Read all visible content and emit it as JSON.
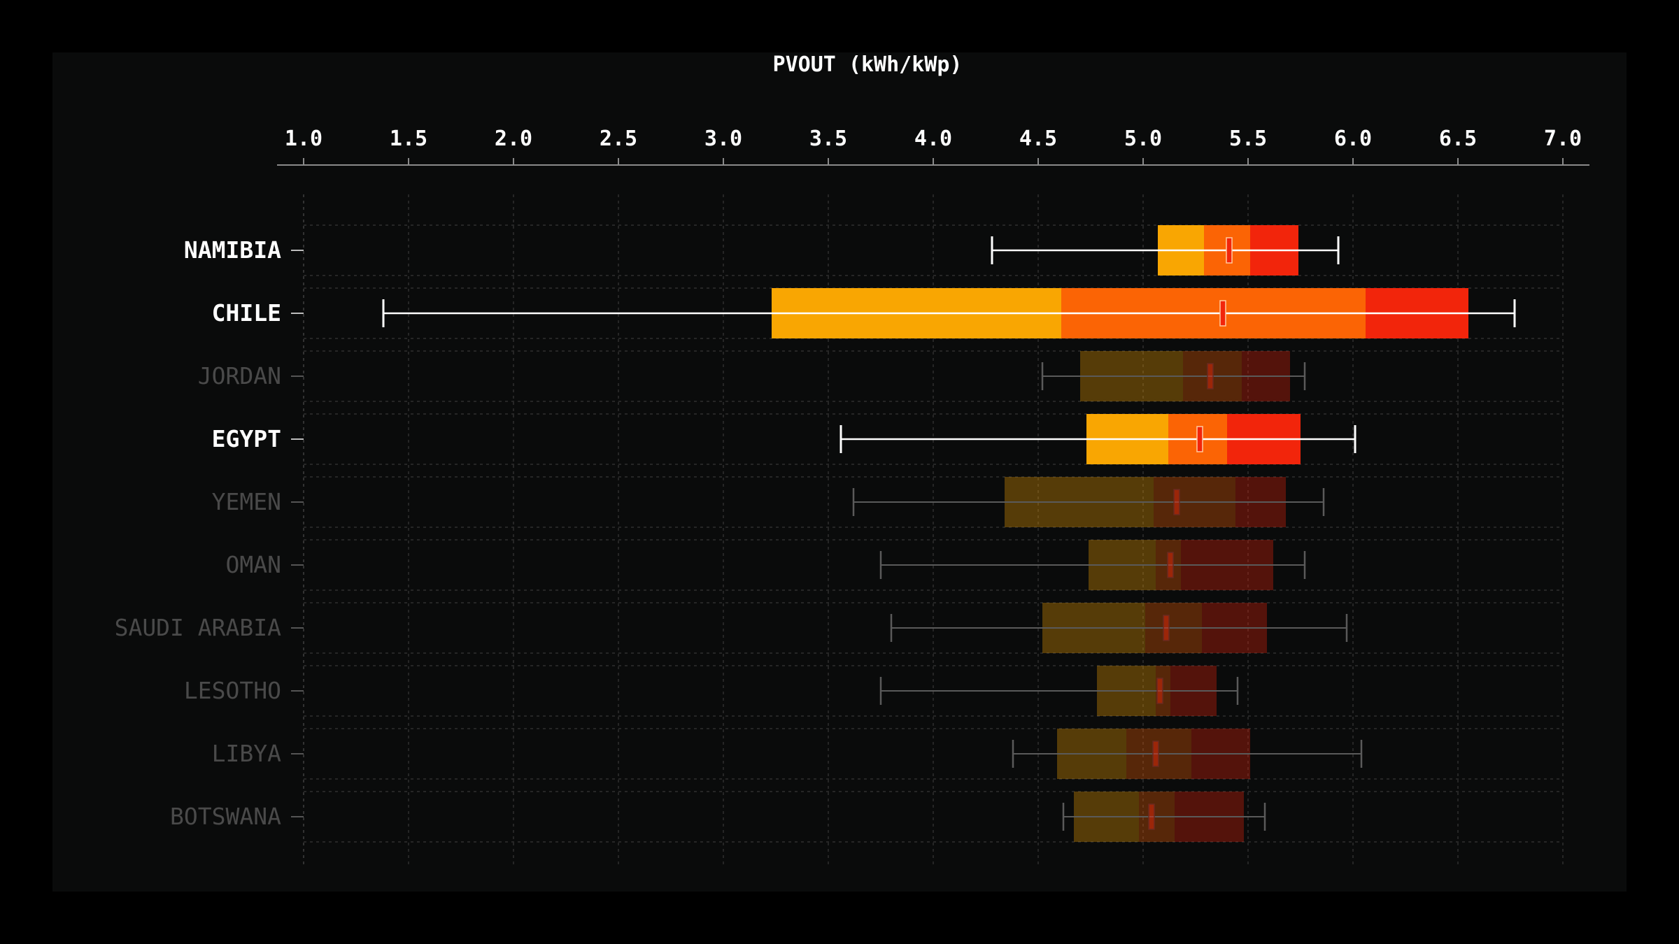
{
  "chart_data": {
    "type": "box",
    "orientation": "horizontal",
    "xlabel": "PVOUT (kWh/kWp)",
    "xlim": [
      1.0,
      7.0
    ],
    "x_ticks": [
      "1.0",
      "1.5",
      "2.0",
      "2.5",
      "3.0",
      "3.5",
      "4.0",
      "4.5",
      "5.0",
      "5.5",
      "6.0",
      "6.5",
      "7.0"
    ],
    "grid": true,
    "colors": {
      "q1_band": "#f9a602",
      "mid_band": "#fb6405",
      "q3_band": "#f2250b",
      "median_mark": "#f2250b",
      "whisker_highlight": "#ffffff",
      "whisker_dim": "#5a5a5a",
      "label_highlight": "#ffffff",
      "label_dim": "#4a4a4a"
    },
    "series": [
      {
        "category": "NAMIBIA",
        "highlighted": true,
        "whisker_low": 4.28,
        "q1": 5.07,
        "split_low": 5.29,
        "median": 5.41,
        "split_high": 5.51,
        "q3": 5.74,
        "whisker_high": 5.93
      },
      {
        "category": "CHILE",
        "highlighted": true,
        "whisker_low": 1.38,
        "q1": 3.23,
        "split_low": 4.61,
        "median": 5.38,
        "split_high": 6.06,
        "q3": 6.55,
        "whisker_high": 6.77
      },
      {
        "category": "JORDAN",
        "highlighted": false,
        "whisker_low": 4.52,
        "q1": 4.7,
        "split_low": 5.19,
        "median": 5.32,
        "split_high": 5.47,
        "q3": 5.7,
        "whisker_high": 5.77
      },
      {
        "category": "EGYPT",
        "highlighted": true,
        "whisker_low": 3.56,
        "q1": 4.73,
        "split_low": 5.12,
        "median": 5.27,
        "split_high": 5.4,
        "q3": 5.75,
        "whisker_high": 6.01
      },
      {
        "category": "YEMEN",
        "highlighted": false,
        "whisker_low": 3.62,
        "q1": 4.34,
        "split_low": 5.05,
        "median": 5.16,
        "split_high": 5.44,
        "q3": 5.68,
        "whisker_high": 5.86
      },
      {
        "category": "OMAN",
        "highlighted": false,
        "whisker_low": 3.75,
        "q1": 4.74,
        "split_low": 5.06,
        "median": 5.13,
        "split_high": 5.18,
        "q3": 5.62,
        "whisker_high": 5.77
      },
      {
        "category": "SAUDI ARABIA",
        "highlighted": false,
        "whisker_low": 3.8,
        "q1": 4.52,
        "split_low": 5.01,
        "median": 5.11,
        "split_high": 5.28,
        "q3": 5.59,
        "whisker_high": 5.97
      },
      {
        "category": "LESOTHO",
        "highlighted": false,
        "whisker_low": 3.75,
        "q1": 4.78,
        "split_low": 5.06,
        "median": 5.08,
        "split_high": 5.13,
        "q3": 5.35,
        "whisker_high": 5.45
      },
      {
        "category": "LIBYA",
        "highlighted": false,
        "whisker_low": 4.38,
        "q1": 4.59,
        "split_low": 4.92,
        "median": 5.06,
        "split_high": 5.23,
        "q3": 5.51,
        "whisker_high": 6.04
      },
      {
        "category": "BOTSWANA",
        "highlighted": false,
        "whisker_low": 4.62,
        "q1": 4.67,
        "split_low": 4.98,
        "median": 5.04,
        "split_high": 5.15,
        "q3": 5.48,
        "whisker_high": 5.58
      }
    ]
  }
}
